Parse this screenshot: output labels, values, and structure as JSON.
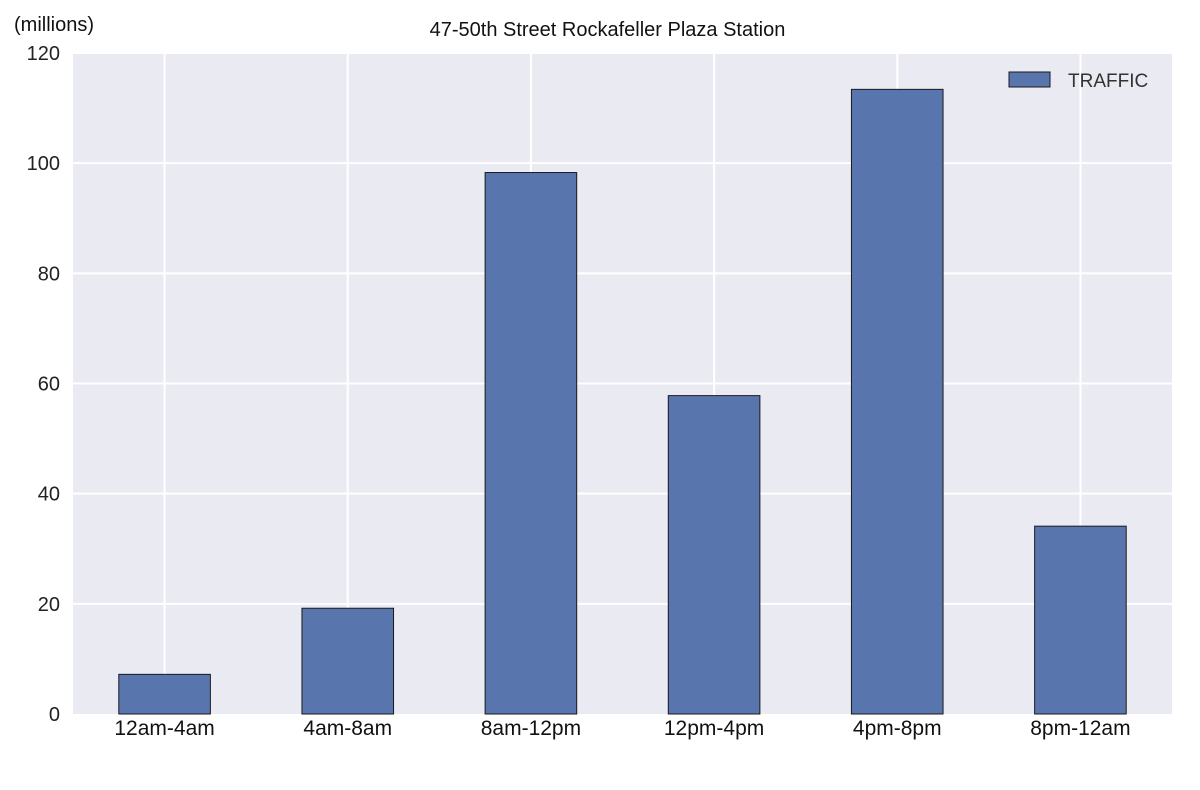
{
  "chart_data": {
    "type": "bar",
    "title": "47-50th Street Rockafeller Plaza Station",
    "ylabel": "(millions)",
    "xlabel": "",
    "categories": [
      "12am-4am",
      "4am-8am",
      "8am-12pm",
      "12pm-4pm",
      "4pm-8pm",
      "8pm-12am"
    ],
    "series": [
      {
        "name": "TRAFFIC",
        "values": [
          7.2,
          19.2,
          98.3,
          57.8,
          113.4,
          34.1
        ],
        "color": "#5975ae"
      }
    ],
    "ylim": [
      0,
      120
    ],
    "yticks": [
      0,
      20,
      40,
      60,
      80,
      100,
      120
    ],
    "grid": true,
    "legend_position": "top-right",
    "background_color": "#eaeaf2",
    "grid_color": "#ffffff"
  }
}
